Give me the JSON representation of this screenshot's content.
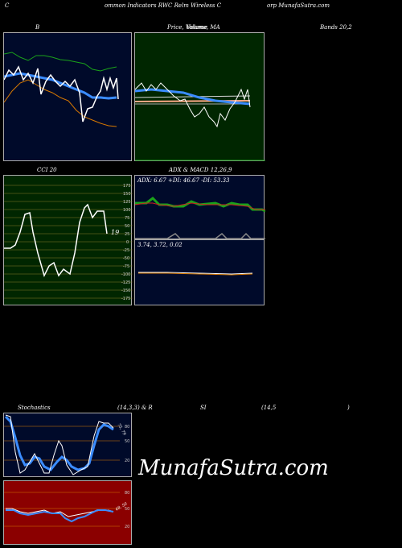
{
  "header": {
    "left": "C",
    "center": "ommon  Indicators RWC Relm Wireless C",
    "right": "orp MunafaSutra.com"
  },
  "titles": {
    "bollinger": "B",
    "price_ma": "Price,  Volume,  MA",
    "price_ma_overlay": "Volume",
    "bands": "Bands 20,2",
    "cci": "CCI 20",
    "adx_macd": "ADX  & MACD 12,26,9",
    "stochastics": "Stochastics",
    "stoch_params": "(14,3,3) & R",
    "rsi": "SI",
    "rsi_params": "(14,5",
    "rsi_close": ")"
  },
  "cci": {
    "value_label": "19",
    "ticks": [
      "175",
      "150",
      "125",
      "100",
      "75",
      "50",
      "25",
      "0",
      "-25",
      "-50",
      "-75",
      "-100",
      "-125",
      "-150",
      "-175"
    ]
  },
  "adx": {
    "label": "ADX: 6.67  +DI: 46.67  -DI: 53.33"
  },
  "macd": {
    "label": "3.74,  3.72,  0.02"
  },
  "stoch": {
    "ticks": [
      "80",
      "50",
      "20"
    ],
    "value_label": "75, 79"
  },
  "rsi_panel": {
    "ticks": [
      "80",
      "50",
      "20"
    ],
    "value_label": "48, 50"
  },
  "watermark": "MunafaSutra.com",
  "colors": {
    "bollinger_bg": "#000a2a",
    "price_bg": "#002600",
    "cci_bg": "#002600",
    "adx_bg": "#000a2a",
    "stoch_bg": "#000a2a",
    "rsi_bg": "#8b0000"
  }
}
